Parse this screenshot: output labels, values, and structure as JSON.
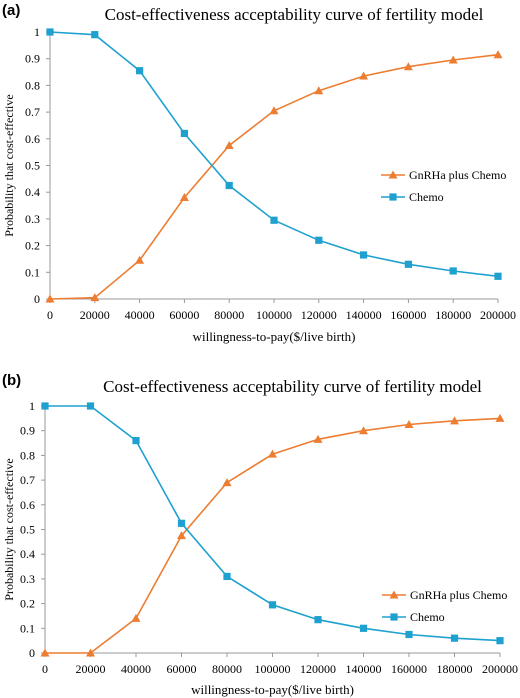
{
  "chart_data": [
    {
      "type": "line",
      "panel": "(a)",
      "title": "Cost-effectiveness acceptability curve of fertility model",
      "xlabel": "willingness-to-pay($/live birth)",
      "ylabel": "Probability that cost-effective",
      "x": [
        0,
        20000,
        40000,
        60000,
        80000,
        100000,
        120000,
        140000,
        160000,
        180000,
        200000
      ],
      "xtick_labels": [
        "0",
        "20000",
        "40000",
        "60000",
        "80000",
        "100000",
        "120000",
        "140000",
        "160000",
        "180000",
        "200000"
      ],
      "ytick_labels": [
        "0",
        "0.1",
        "0.2",
        "0.3",
        "0.4",
        "0.5",
        "0.6",
        "0.7",
        "0.8",
        "0.9",
        "1"
      ],
      "ylim": [
        0,
        1
      ],
      "grid": false,
      "legend_position": "right",
      "series": [
        {
          "name": "GnRHa plus Chemo",
          "color": "#ED7D31",
          "marker": "triangle",
          "values": [
            0,
            0.005,
            0.145,
            0.38,
            0.575,
            0.705,
            0.78,
            0.835,
            0.87,
            0.895,
            0.915
          ]
        },
        {
          "name": "Chemo",
          "color": "#1FA1D0",
          "marker": "square",
          "values": [
            1,
            0.99,
            0.855,
            0.62,
            0.425,
            0.295,
            0.22,
            0.165,
            0.13,
            0.105,
            0.085
          ]
        }
      ]
    },
    {
      "type": "line",
      "panel": "(b)",
      "title": "Cost-effectiveness acceptability curve of fertility model",
      "xlabel": "willingness-to-pay($/live birth)",
      "ylabel": "Probability that cost-effective",
      "x": [
        0,
        20000,
        40000,
        60000,
        80000,
        100000,
        120000,
        140000,
        160000,
        180000,
        200000
      ],
      "xtick_labels": [
        "0",
        "20000",
        "40000",
        "60000",
        "80000",
        "100000",
        "120000",
        "140000",
        "160000",
        "180000",
        "200000"
      ],
      "ytick_labels": [
        "0",
        "0.1",
        "0.2",
        "0.3",
        "0.4",
        "0.5",
        "0.6",
        "0.7",
        "0.8",
        "0.9",
        "1"
      ],
      "ylim": [
        0,
        1
      ],
      "grid": false,
      "legend_position": "right",
      "series": [
        {
          "name": "GnRHa plus Chemo",
          "color": "#ED7D31",
          "marker": "triangle",
          "values": [
            0,
            0,
            0.14,
            0.475,
            0.69,
            0.805,
            0.865,
            0.9,
            0.925,
            0.94,
            0.95
          ]
        },
        {
          "name": "Chemo",
          "color": "#1FA1D0",
          "marker": "square",
          "values": [
            1,
            1,
            0.86,
            0.525,
            0.31,
            0.195,
            0.135,
            0.1,
            0.075,
            0.06,
            0.05
          ]
        }
      ]
    }
  ]
}
